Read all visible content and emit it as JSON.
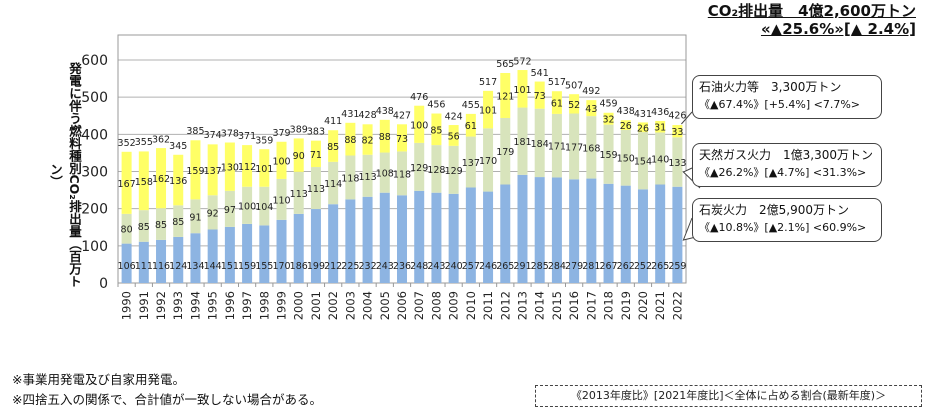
{
  "title": {
    "line1": "CO₂排出量　4億2,600万トン",
    "line2": "«▲25.6%»[▲ 2.4%]"
  },
  "chart_data": {
    "type": "bar",
    "stacked": true,
    "ylabel": "発電に伴う燃料種別CO₂排出量（百万トン）",
    "ylim": [
      0,
      600
    ],
    "yticks": [
      0,
      100,
      200,
      300,
      400,
      500,
      600
    ],
    "grid": true,
    "categories": [
      "1990",
      "1991",
      "1992",
      "1993",
      "1994",
      "1995",
      "1996",
      "1997",
      "1998",
      "1999",
      "2000",
      "2001",
      "2002",
      "2003",
      "2004",
      "2005",
      "2006",
      "2007",
      "2008",
      "2009",
      "2010",
      "2011",
      "2012",
      "2013",
      "2014",
      "2015",
      "2016",
      "2017",
      "2018",
      "2019",
      "2020",
      "2021",
      "2022"
    ],
    "series": [
      {
        "name": "石炭火力",
        "color": "#8DB4E2",
        "values": [
          106,
          111,
          116,
          124,
          134,
          144,
          151,
          159,
          155,
          170,
          186,
          199,
          212,
          225,
          232,
          243,
          236,
          248,
          243,
          240,
          257,
          246,
          265,
          291,
          285,
          284,
          279,
          281,
          267,
          262,
          252,
          265,
          259
        ]
      },
      {
        "name": "天然ガス火力",
        "color": "#D8E4BC",
        "values": [
          80,
          85,
          85,
          85,
          91,
          92,
          97,
          100,
          104,
          110,
          113,
          113,
          114,
          118,
          113,
          108,
          118,
          129,
          128,
          129,
          137,
          170,
          179,
          181,
          184,
          171,
          177,
          168,
          159,
          150,
          154,
          140,
          133
        ]
      },
      {
        "name": "石油火力等",
        "color": "#FFFF66",
        "values": [
          167,
          158,
          162,
          136,
          159,
          137,
          130,
          112,
          101,
          100,
          90,
          71,
          85,
          88,
          82,
          88,
          73,
          100,
          85,
          56,
          61,
          101,
          121,
          101,
          73,
          61,
          52,
          43,
          32,
          26,
          26,
          31,
          33
        ]
      }
    ],
    "totals": [
      352,
      355,
      362,
      345,
      385,
      374,
      378,
      371,
      359,
      379,
      389,
      383,
      411,
      431,
      428,
      438,
      427,
      476,
      456,
      424,
      455,
      517,
      565,
      572,
      541,
      517,
      507,
      492,
      459,
      438,
      431,
      436,
      426
    ]
  },
  "callouts": [
    {
      "label": "石油火力等　3,300万トン",
      "stats": "《▲67.4%》[+5.4%] <7.7%>"
    },
    {
      "label": "天然ガス火力　1億3,300万トン",
      "stats": "《▲26.2%》[▲4.7%] <31.3%>"
    },
    {
      "label": "石炭火力　2億5,900万トン",
      "stats": "《▲10.8%》[▲2.1%] <60.9%>"
    }
  ],
  "notes": [
    "※事業用発電及び自家用発電。",
    "※四捨五入の関係で、合計値が一致しない場合がある。"
  ],
  "legend_note": "《2013年度比》[2021年度比]＜全体に占める割合(最新年度)＞"
}
